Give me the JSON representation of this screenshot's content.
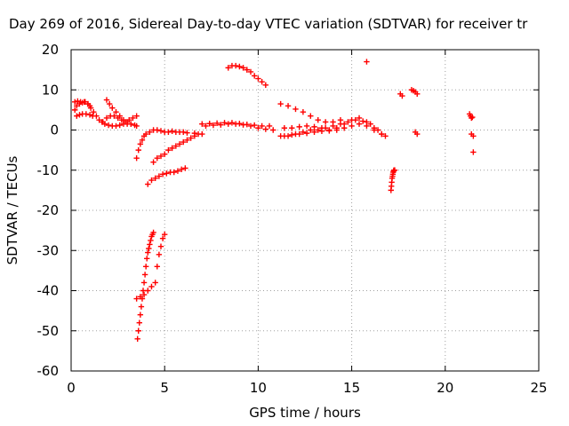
{
  "chart_data": {
    "type": "scatter",
    "title": "Day 269 of 2016, Sidereal Day-to-day VTEC variation (SDTVAR) for receiver tr",
    "xlabel": "GPS time / hours",
    "ylabel": "SDTVAR / TECUs",
    "xlim": [
      0,
      25
    ],
    "ylim": [
      -60,
      20
    ],
    "xticks": [
      "0",
      "5",
      "10",
      "15",
      "20",
      "25"
    ],
    "yticks": [
      "20",
      "10",
      "0",
      "-10",
      "-20",
      "-30",
      "-40",
      "-50",
      "-60"
    ],
    "grid": true,
    "marker": "+",
    "marker_color": "#ff0000",
    "series": [
      {
        "x": [
          0.2,
          0.3,
          0.45,
          0.6,
          0.75,
          0.9,
          1.05,
          1.2,
          1.35,
          1.5,
          1.65,
          1.8,
          2.0,
          2.2,
          2.4,
          2.6,
          2.8,
          3.0,
          3.2,
          0.2,
          0.35,
          0.5,
          0.7,
          0.9,
          1.0,
          0.3,
          0.45,
          0.6,
          0.8,
          1.0,
          1.15,
          1.9,
          2.05,
          2.2,
          2.4,
          2.6,
          2.8,
          3.0,
          3.2,
          3.4,
          3.5,
          1.7,
          1.9,
          2.1,
          2.3,
          2.5,
          2.7,
          2.9,
          3.1,
          3.3,
          3.5,
          3.5,
          3.6,
          3.7,
          3.8,
          3.9,
          4.0,
          4.2,
          4.4,
          4.6,
          4.8,
          5.0,
          5.2,
          5.4,
          5.6,
          5.8,
          6.0,
          6.2,
          6.6,
          7.0,
          4.4,
          4.6,
          4.8,
          5.0,
          5.2,
          5.4,
          5.6,
          5.8,
          6.0,
          6.2,
          6.4,
          6.6,
          6.8,
          4.1,
          4.3,
          4.5,
          4.7,
          4.9,
          5.1,
          5.3,
          5.5,
          5.7,
          5.9,
          6.1,
          3.55,
          3.6,
          3.65,
          3.7,
          3.75,
          3.8,
          3.85,
          3.9,
          3.95,
          4.0,
          4.05,
          4.1,
          4.15,
          4.2,
          4.25,
          4.3,
          4.35,
          4.4,
          3.5,
          3.7,
          3.9,
          4.1,
          4.3,
          4.5,
          4.6,
          4.7,
          4.8,
          4.9,
          5.0,
          7.0,
          7.4,
          7.8,
          8.2,
          8.6,
          9.0,
          9.4,
          9.8,
          10.2,
          10.6,
          7.2,
          7.6,
          8.0,
          8.4,
          8.8,
          9.2,
          9.6,
          10.0,
          10.4,
          10.8,
          8.4,
          8.6,
          8.8,
          9.0,
          9.2,
          9.4,
          9.6,
          9.8,
          10.0,
          10.2,
          10.4,
          11.2,
          11.6,
          12.0,
          12.4,
          12.8,
          13.2,
          13.6,
          14.0,
          14.4,
          11.2,
          11.6,
          12.0,
          12.4,
          12.8,
          13.2,
          13.6,
          14.0,
          14.4,
          14.8,
          15.2,
          15.6,
          16.0,
          16.4,
          16.8,
          11.4,
          11.8,
          12.2,
          12.6,
          13.0,
          13.4,
          13.8,
          14.2,
          14.6,
          15.0,
          15.4,
          15.8,
          16.2,
          16.6,
          11.4,
          11.8,
          12.2,
          12.6,
          13.0,
          13.4,
          13.8,
          14.2,
          14.6,
          15.0,
          15.4,
          15.8,
          16.2,
          16.6,
          15.8,
          17.1,
          17.12,
          17.14,
          17.16,
          17.18,
          17.2,
          17.22,
          17.24,
          17.26,
          17.28,
          17.3,
          17.6,
          17.7,
          18.2,
          18.3,
          18.4,
          18.5,
          18.4,
          18.5,
          21.3,
          21.35,
          21.4,
          21.45,
          21.4,
          21.5,
          21.5
        ],
        "y": [
          5,
          6,
          6.5,
          6.8,
          7,
          6.5,
          5.5,
          4.5,
          3.5,
          2.5,
          2,
          1.5,
          1.2,
          1,
          1,
          1.2,
          1.5,
          1.5,
          1.5,
          7,
          7.2,
          7,
          7,
          6.5,
          6,
          3.5,
          3.8,
          4,
          4,
          3.8,
          3.5,
          7.5,
          6.5,
          5.5,
          4.5,
          3.5,
          2.5,
          2,
          1.5,
          1.2,
          1,
          2,
          3,
          3.5,
          3.5,
          3,
          2.5,
          2,
          2.5,
          3,
          3.5,
          -7,
          -5,
          -3.5,
          -2.5,
          -1.5,
          -1,
          -0.5,
          0,
          0,
          -0.2,
          -0.5,
          -0.5,
          -0.3,
          -0.5,
          -0.5,
          -0.5,
          -0.7,
          -0.8,
          -1,
          -8,
          -7,
          -6.5,
          -6,
          -5,
          -4.5,
          -4,
          -3.5,
          -3,
          -2.5,
          -2,
          -1.5,
          -1,
          -13.5,
          -12.5,
          -12,
          -11.5,
          -11,
          -10.8,
          -10.5,
          -10.5,
          -10.2,
          -9.8,
          -9.5,
          -52,
          -50,
          -48,
          -46,
          -44,
          -42,
          -40,
          -38,
          -36,
          -34,
          -32,
          -30.5,
          -29.5,
          -28.5,
          -27.5,
          -26.5,
          -26,
          -25.5,
          -42,
          -41.5,
          -41,
          -40,
          -39,
          -38,
          -34,
          -31,
          -29,
          -27,
          -26,
          1.5,
          1.6,
          1.7,
          1.8,
          1.8,
          1.6,
          1.4,
          1.2,
          1,
          1,
          1,
          1.2,
          1.3,
          1.5,
          1.5,
          1.3,
          1,
          0.5,
          0.2,
          0,
          15.5,
          16,
          16,
          15.8,
          15.5,
          15,
          14.5,
          13.5,
          12.8,
          12,
          11.2,
          6.5,
          6,
          5.2,
          4.5,
          3.5,
          2.5,
          2,
          2,
          2.5,
          -1.5,
          -1.5,
          -1,
          -0.5,
          0,
          0,
          0.5,
          1,
          1.5,
          2,
          2.5,
          2.2,
          1.5,
          0,
          -1.5,
          -1.5,
          -1.2,
          -1,
          -0.8,
          -0.5,
          -0.3,
          -0.2,
          0,
          0.5,
          1,
          1.5,
          1,
          0,
          -1,
          0.5,
          0.5,
          0.8,
          1,
          0.8,
          0.5,
          0,
          0.5,
          1.5,
          2.5,
          3,
          2,
          0.5,
          -1,
          17,
          -15,
          -14,
          -13,
          -12,
          -11.5,
          -11,
          -10.5,
          -10.2,
          -10,
          -10,
          -10,
          9,
          8.5,
          10,
          9.8,
          9.5,
          9,
          -0.5,
          -1,
          4,
          3.5,
          3,
          3.2,
          -1,
          -1.5,
          -5.5
        ]
      }
    ]
  }
}
